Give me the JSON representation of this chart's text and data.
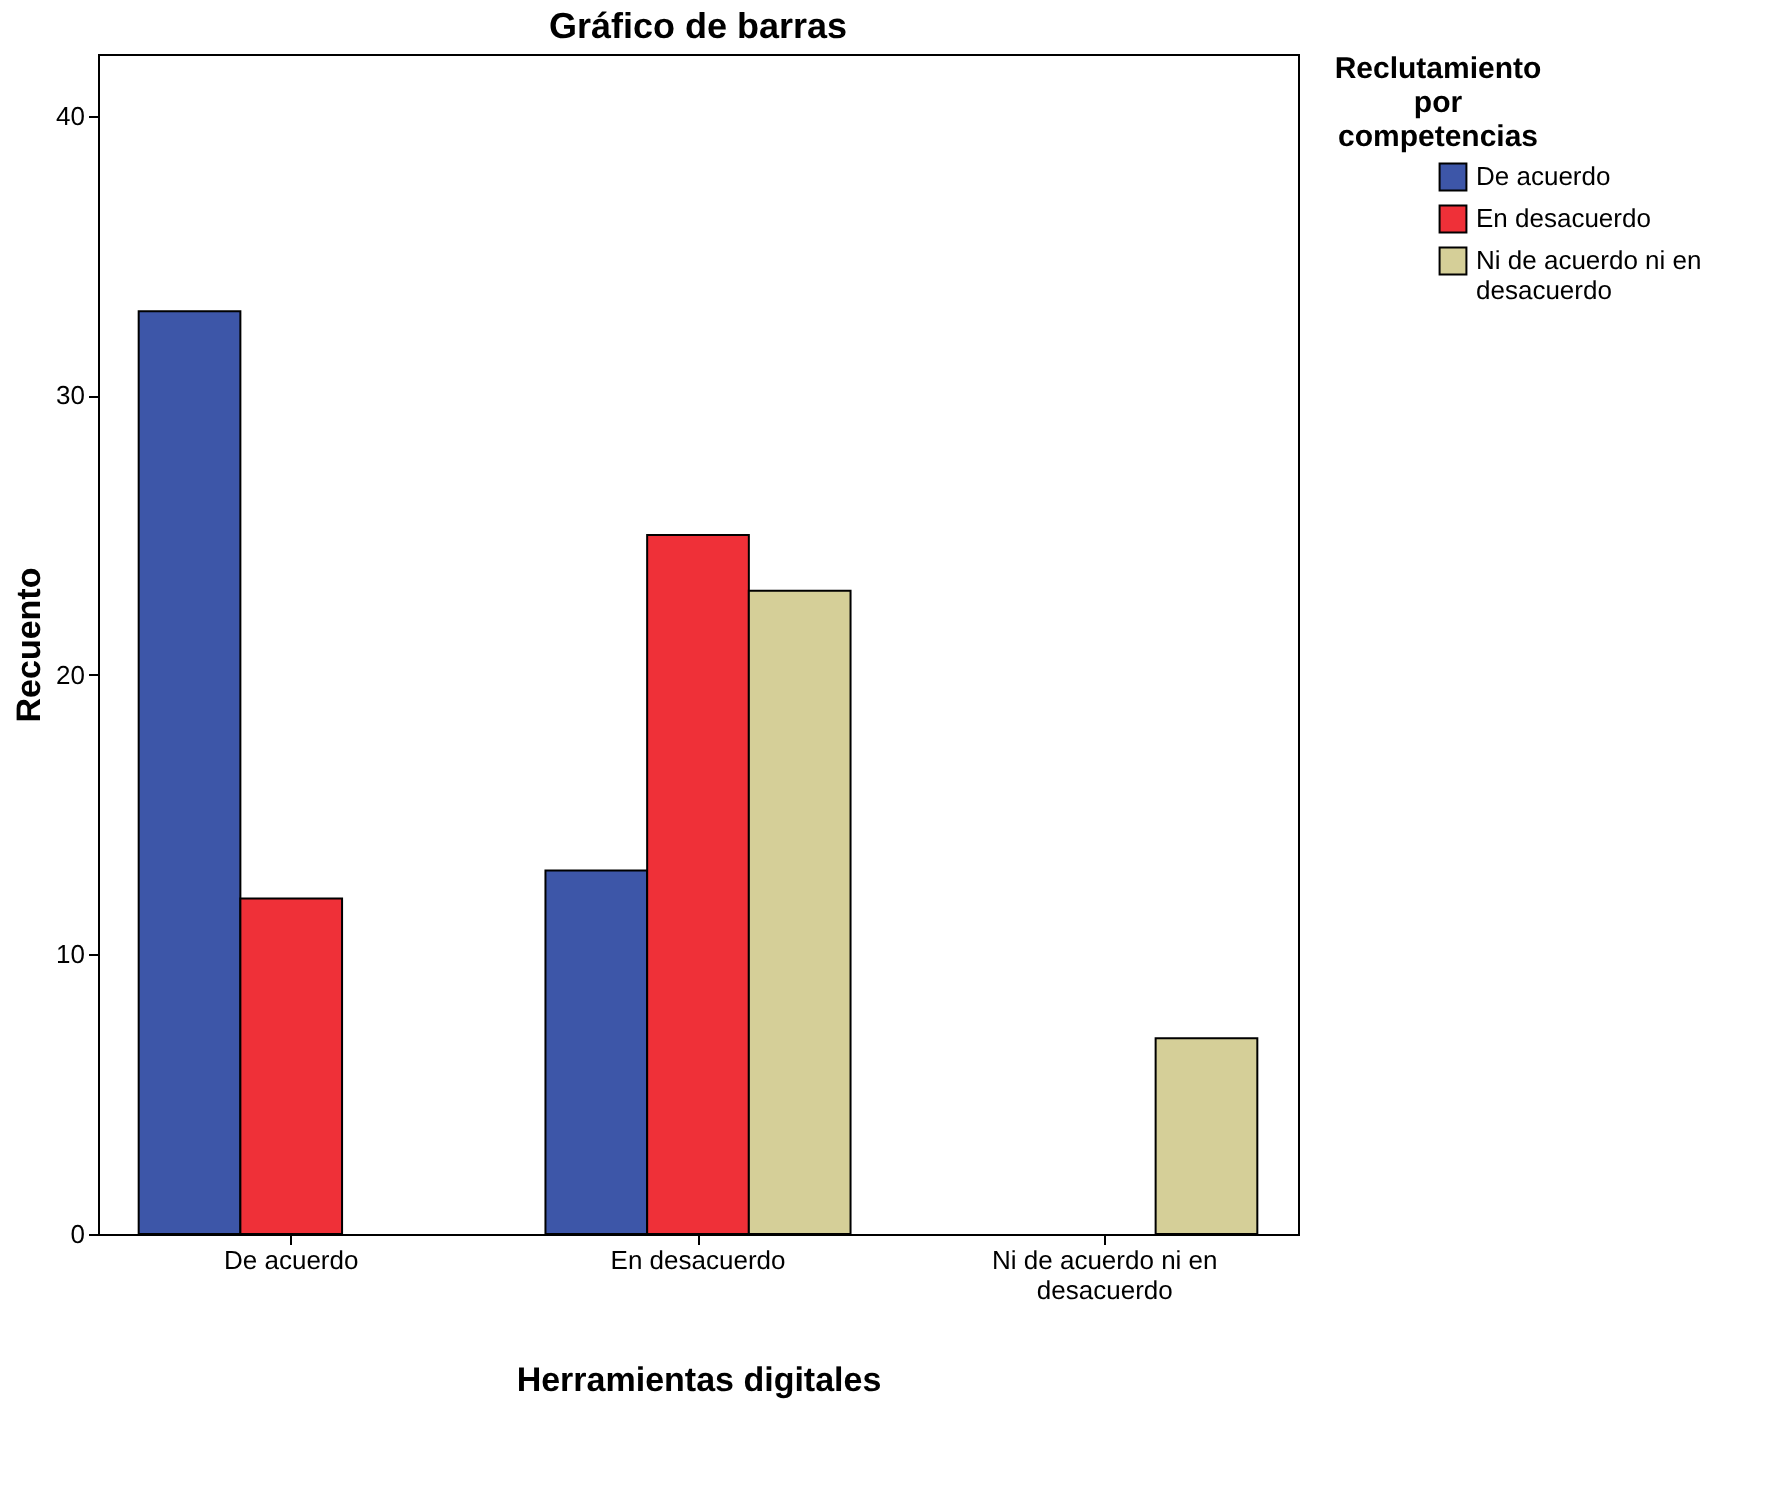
{
  "chart_data": {
    "type": "bar",
    "title": "Gráfico de barras",
    "xlabel": "Herramientas digitales",
    "ylabel": "Recuento",
    "legend_title": "Reclutamiento por competencias",
    "categories": [
      "De acuerdo",
      "En desacuerdo",
      "Ni de acuerdo ni en desacuerdo"
    ],
    "series": [
      {
        "name": "De acuerdo",
        "color": "#3d56a8",
        "values": [
          33,
          13,
          null
        ]
      },
      {
        "name": "En desacuerdo",
        "color": "#ef3038",
        "values": [
          12,
          25,
          null
        ]
      },
      {
        "name": "Ni de acuerdo ni en desacuerdo",
        "color": "#d5cf98",
        "values": [
          null,
          23,
          7
        ]
      }
    ],
    "ylim": [
      0,
      42.2
    ],
    "yticks": [
      0,
      10,
      20,
      30,
      40
    ],
    "grid": false,
    "legend": "top right"
  }
}
